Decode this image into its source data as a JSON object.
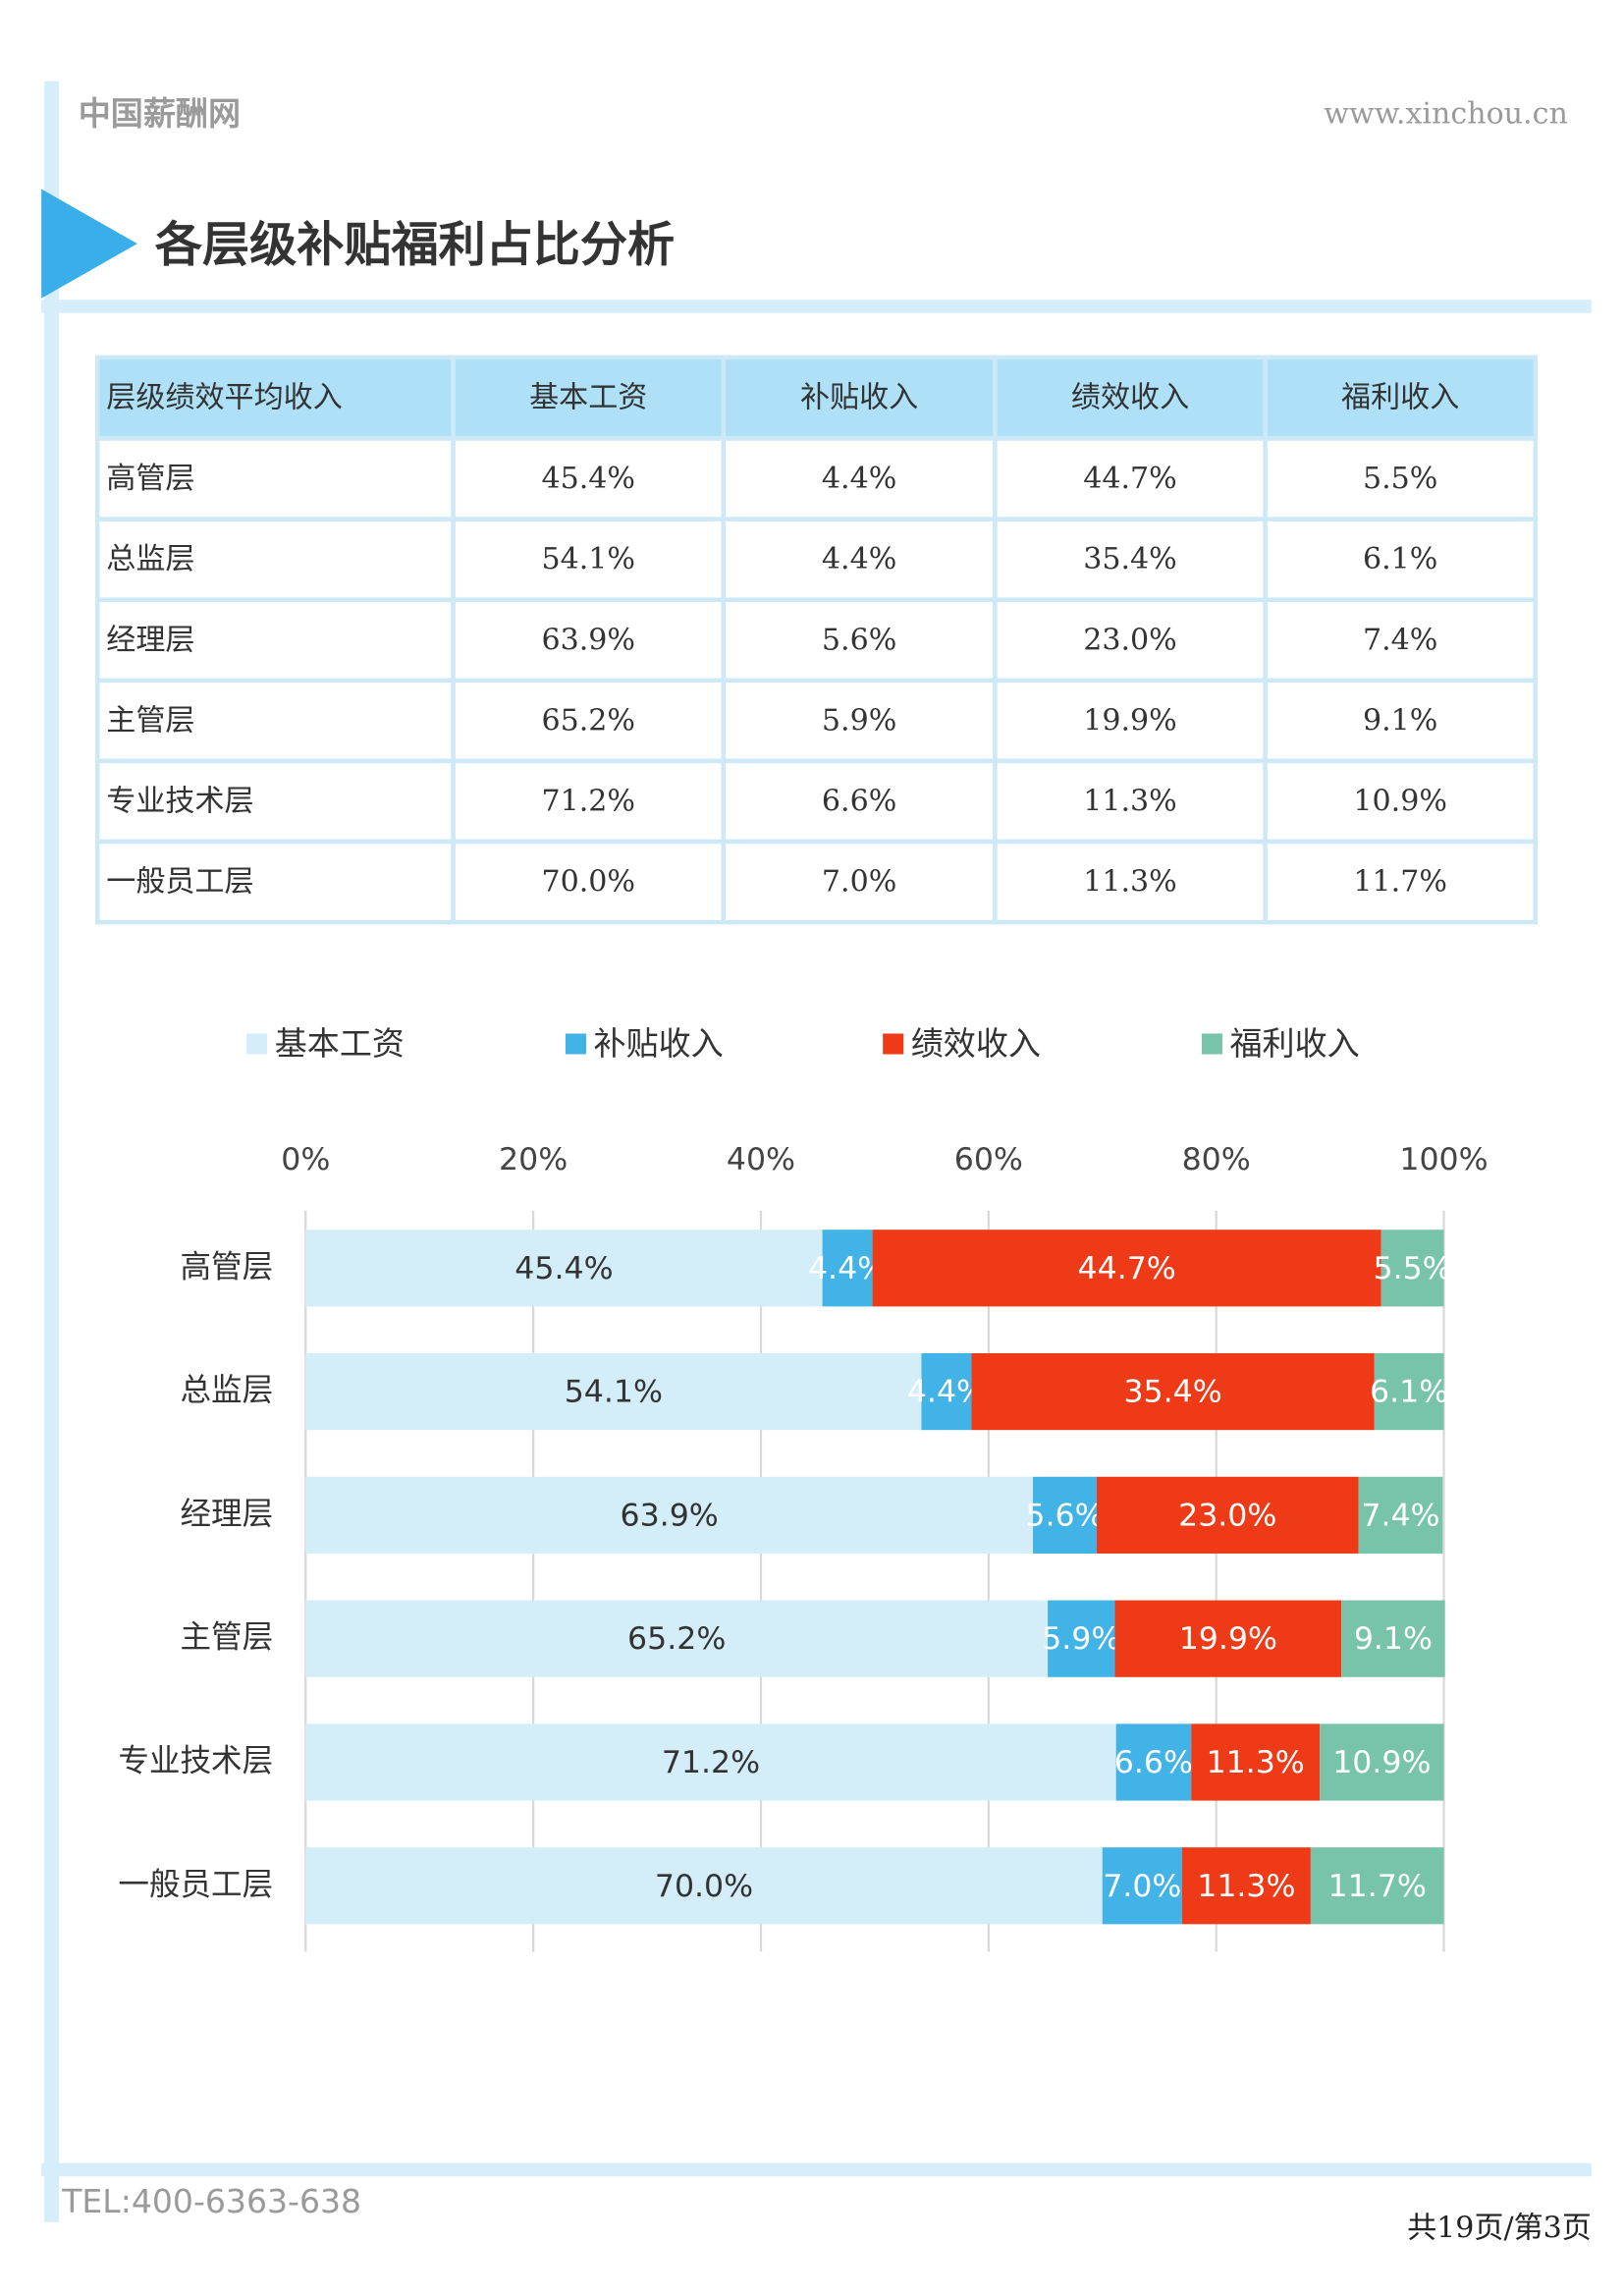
{
  "header": {
    "site_name": "中国薪酬网",
    "url": "www.xinchou.cn"
  },
  "title": "各层级补贴福利占比分析",
  "table": {
    "header": [
      "层级绩效平均收入",
      "基本工资",
      "补贴收入",
      "绩效收入",
      "福利收入"
    ],
    "rows": [
      [
        "高管层",
        "45.4%",
        "4.4%",
        "44.7%",
        "5.5%"
      ],
      [
        "总监层",
        "54.1%",
        "4.4%",
        "35.4%",
        "6.1%"
      ],
      [
        "经理层",
        "63.9%",
        "5.6%",
        "23.0%",
        "7.4%"
      ],
      [
        "主管层",
        "65.2%",
        "5.9%",
        "19.9%",
        "9.1%"
      ],
      [
        "专业技术层",
        "71.2%",
        "6.6%",
        "11.3%",
        "10.9%"
      ],
      [
        "一般员工层",
        "70.0%",
        "7.0%",
        "11.3%",
        "11.7%"
      ]
    ]
  },
  "chart_data": {
    "type": "stacked_barh",
    "legend": "top",
    "categories": [
      "高管层",
      "总监层",
      "经理层",
      "主管层",
      "专业技术层",
      "一般员工层"
    ],
    "series": [
      {
        "name": "基本工资",
        "color": "#d4eef9",
        "values": [
          45.4,
          54.1,
          63.9,
          65.2,
          71.2,
          70.0
        ],
        "value_labels": [
          "45.4%",
          "54.1%",
          "63.9%",
          "65.2%",
          "71.2%",
          "70.0%"
        ]
      },
      {
        "name": "补贴收入",
        "color": "#41b3e6",
        "values": [
          4.4,
          4.4,
          5.6,
          5.9,
          6.6,
          7.0
        ],
        "value_labels": [
          "4.4%",
          "4.4%",
          "5.6%",
          "5.9%",
          "6.6%",
          "7.0%"
        ]
      },
      {
        "name": "绩效收入",
        "color": "#ef3a17",
        "values": [
          44.7,
          35.4,
          23.0,
          19.9,
          11.3,
          11.3
        ],
        "value_labels": [
          "44.7%",
          "35.4%",
          "23.0%",
          "19.9%",
          "11.3%",
          "11.3%"
        ]
      },
      {
        "name": "福利收入",
        "color": "#78c4aa",
        "values": [
          5.5,
          6.1,
          7.4,
          9.1,
          10.9,
          11.7
        ],
        "value_labels": [
          "5.5%",
          "6.1%",
          "7.4%",
          "9.1%",
          "10.9%",
          "11.7%"
        ]
      }
    ],
    "xlim": [
      0,
      100
    ],
    "xticks": [
      {
        "value": 0,
        "label": "0%"
      },
      {
        "value": 20,
        "label": "20%"
      },
      {
        "value": 40,
        "label": "40%"
      },
      {
        "value": 60,
        "label": "60%"
      },
      {
        "value": 80,
        "label": "80%"
      },
      {
        "value": 100,
        "label": "100%"
      }
    ],
    "grid": true
  },
  "footer": {
    "tel": "TEL:400-6363-638",
    "page": "共19页/第3页"
  }
}
